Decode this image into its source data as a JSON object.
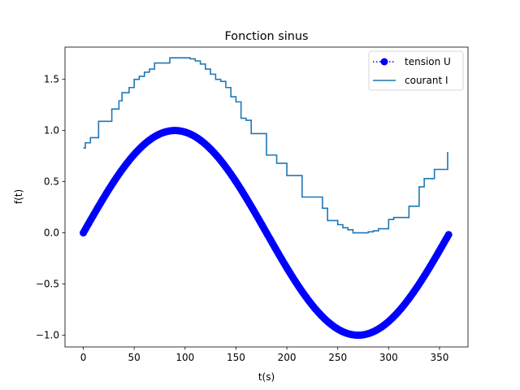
{
  "chart_data": {
    "type": "line",
    "title": "Fonction sinus",
    "xlabel": "t(s)",
    "ylabel": "f(t)",
    "xlim": [
      -18,
      378
    ],
    "ylim": [
      -1.115,
      1.815
    ],
    "xticks": [
      0,
      50,
      100,
      150,
      200,
      250,
      300,
      350
    ],
    "yticks": [
      -1.0,
      -0.5,
      0.0,
      0.5,
      1.0,
      1.5
    ],
    "xtick_labels": [
      "0",
      "50",
      "100",
      "150",
      "200",
      "250",
      "300",
      "350"
    ],
    "ytick_labels": [
      "−1.0",
      "−0.5",
      "0.0",
      "0.5",
      "1.0",
      "1.5"
    ],
    "grid": false,
    "legend_position": "top-right",
    "series": [
      {
        "name": "tension U",
        "style": "dotted line with circle markers",
        "color": "#0000ff",
        "function": "sin(t in degrees)",
        "x_start": 0,
        "x_end": 359,
        "x_step": 1
      },
      {
        "name": "courant I",
        "style": "step line",
        "color": "#1f77b4",
        "x": [
          0,
          2,
          4,
          7,
          15,
          25,
          28,
          35,
          38,
          45,
          50,
          55,
          60,
          65,
          70,
          75,
          85,
          100,
          105,
          110,
          115,
          120,
          125,
          130,
          135,
          140,
          145,
          150,
          155,
          160,
          165,
          170,
          180,
          190,
          200,
          210,
          215,
          225,
          235,
          240,
          250,
          255,
          260,
          265,
          270,
          280,
          285,
          290,
          300,
          305,
          320,
          330,
          335,
          345,
          355,
          358
        ],
        "y": [
          0.83,
          0.88,
          0.88,
          0.93,
          1.09,
          1.09,
          1.21,
          1.29,
          1.37,
          1.42,
          1.5,
          1.53,
          1.57,
          1.6,
          1.66,
          1.66,
          1.71,
          1.71,
          1.7,
          1.68,
          1.65,
          1.6,
          1.55,
          1.5,
          1.48,
          1.42,
          1.33,
          1.28,
          1.12,
          1.1,
          0.97,
          0.97,
          0.76,
          0.68,
          0.56,
          0.56,
          0.35,
          0.35,
          0.24,
          0.12,
          0.08,
          0.05,
          0.03,
          0.0,
          0.0,
          0.01,
          0.02,
          0.04,
          0.13,
          0.15,
          0.26,
          0.45,
          0.53,
          0.62,
          0.62,
          0.79
        ]
      }
    ]
  }
}
